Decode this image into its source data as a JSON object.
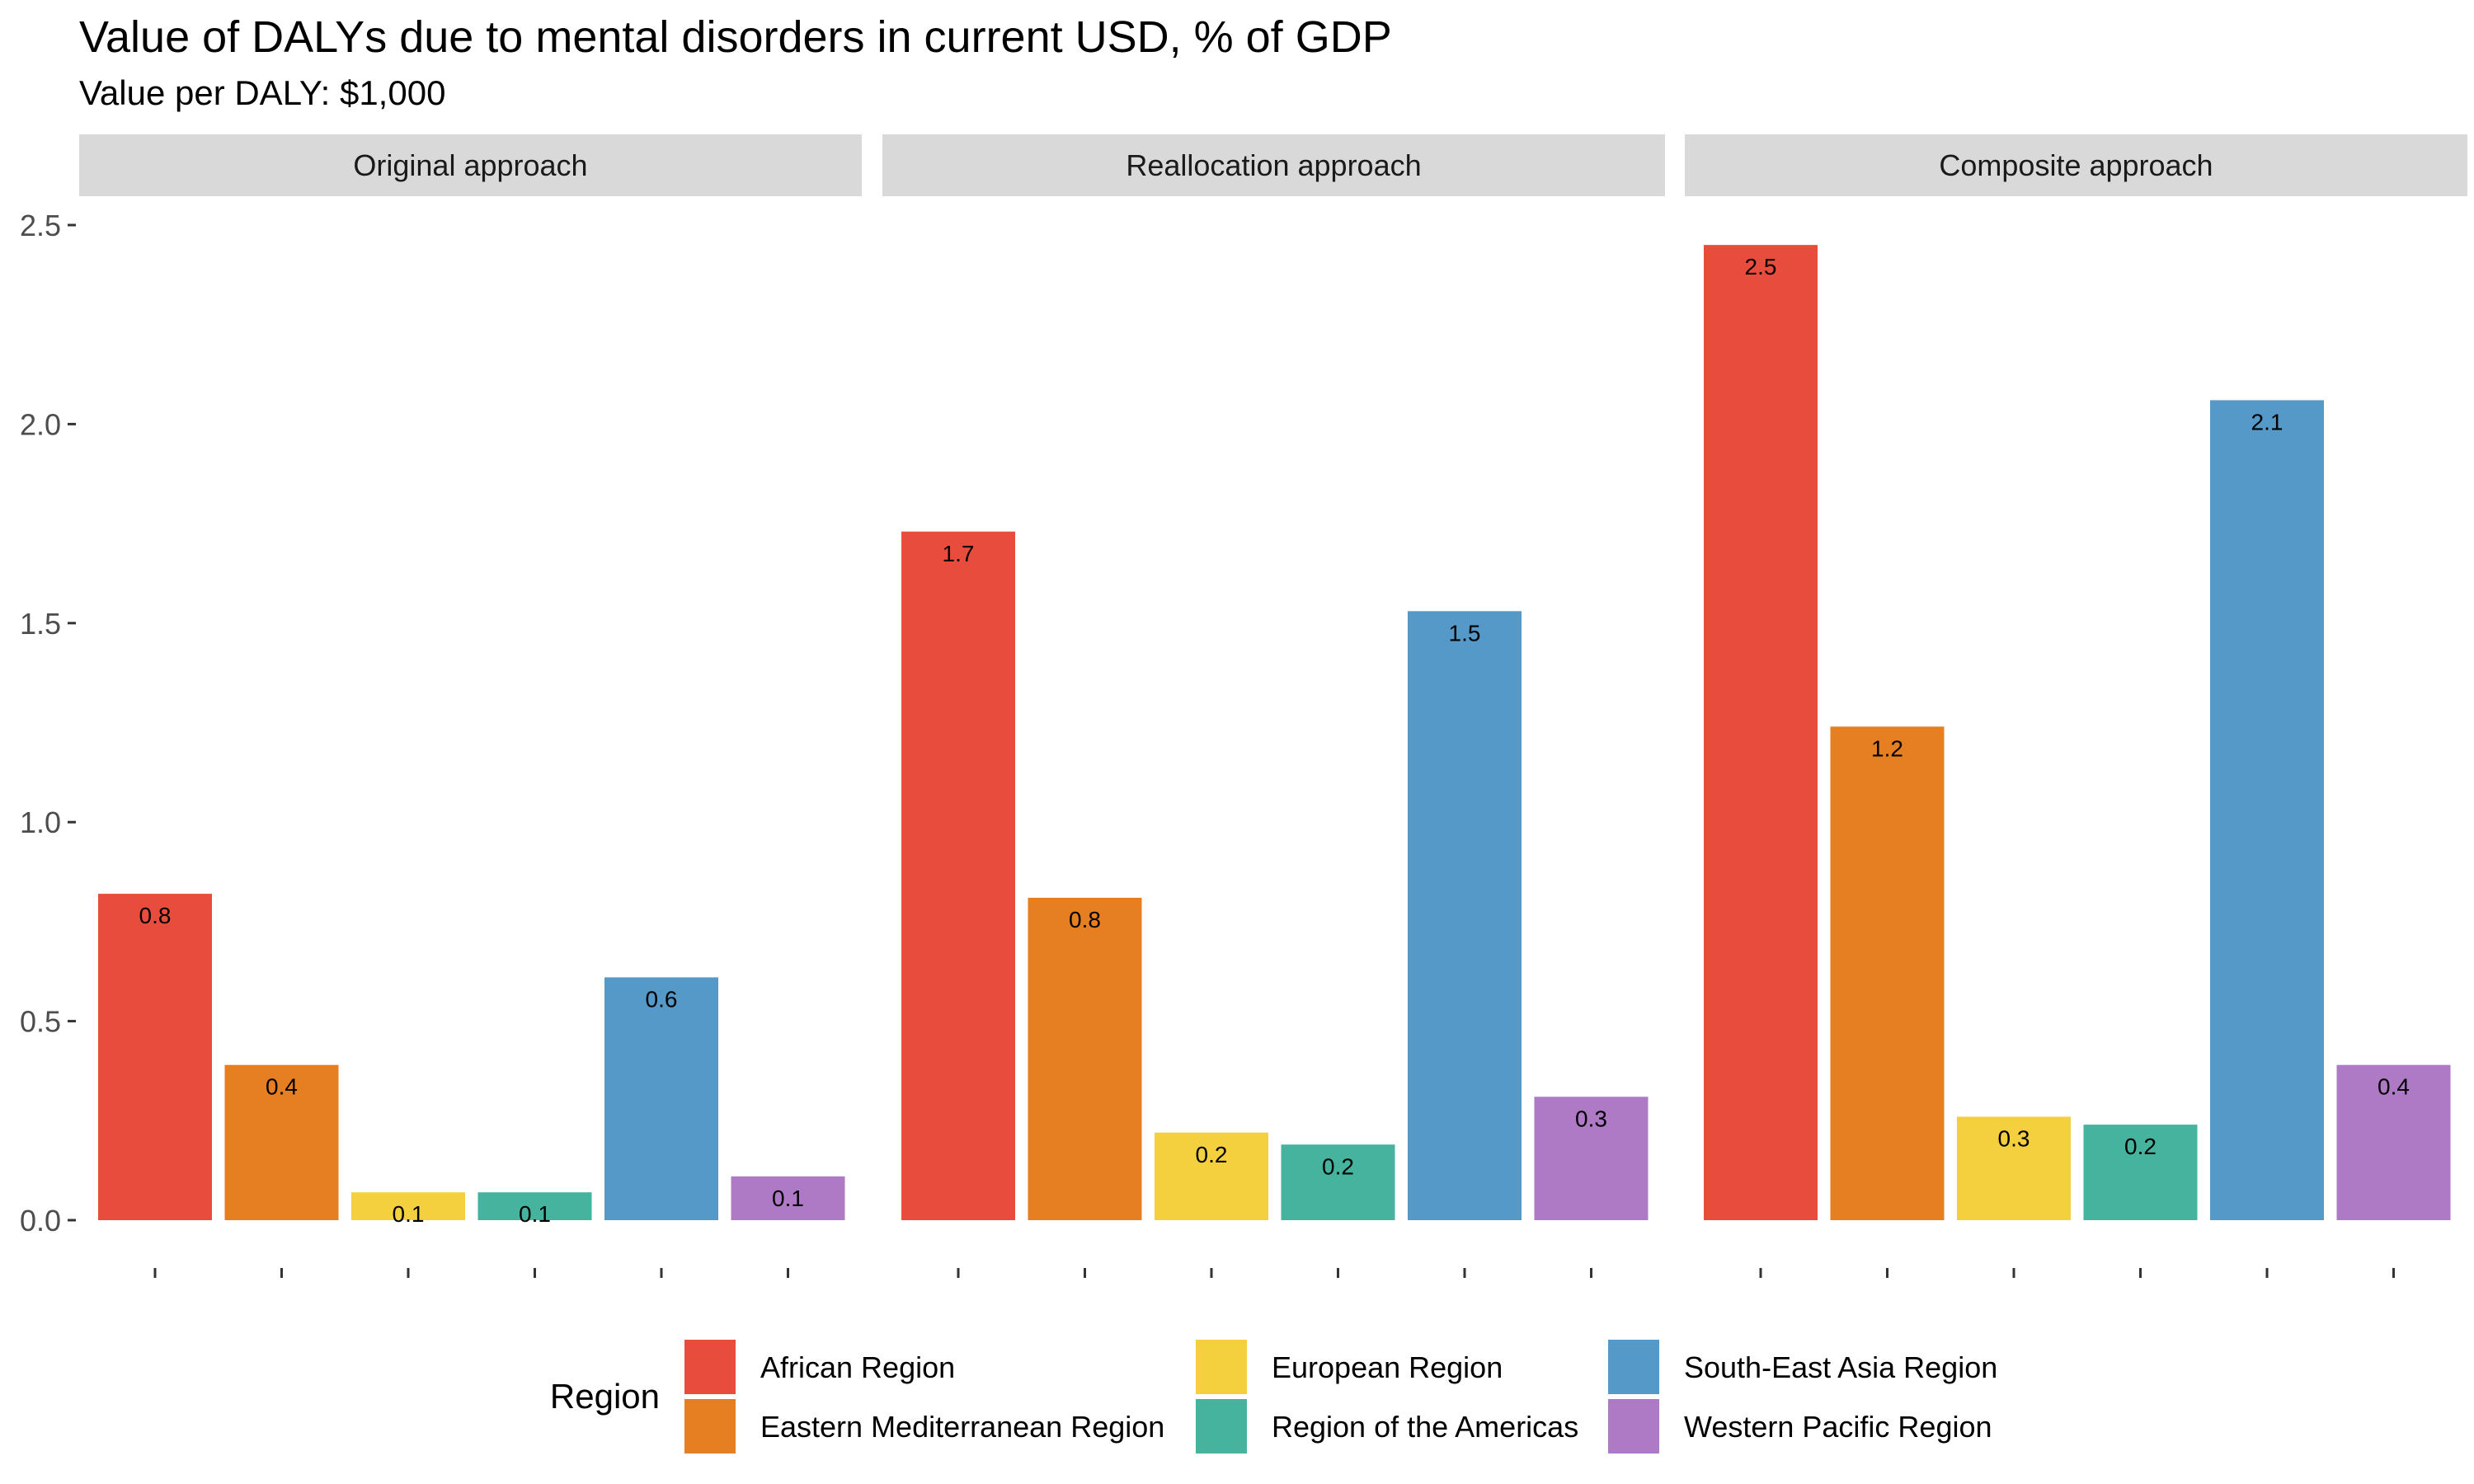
{
  "chart_data": {
    "type": "bar",
    "title": "Value of DALYs due to mental disorders in current USD, % of GDP",
    "subtitle": "Value per DALY: $1,000",
    "ylim": [
      0,
      2.55
    ],
    "yticks": [
      "0.0",
      "0.5",
      "1.0",
      "1.5",
      "2.0",
      "2.5"
    ],
    "ytick_values": [
      0,
      0.5,
      1.0,
      1.5,
      2.0,
      2.5
    ],
    "grid": false,
    "legend_position": "bottom",
    "legend_title": "Region",
    "categories": [
      "African Region",
      "Eastern Mediterranean Region",
      "European Region",
      "Region of the Americas",
      "South-East Asia Region",
      "Western Pacific Region"
    ],
    "colors": [
      "#E84C3D",
      "#E67E22",
      "#F4D03F",
      "#45B39D",
      "#5499C7",
      "#AF7AC5"
    ],
    "panels": [
      {
        "name": "Original approach",
        "values": [
          0.82,
          0.39,
          0.07,
          0.07,
          0.61,
          0.11
        ],
        "labels": [
          "0.8",
          "0.4",
          "0.1",
          "0.1",
          "0.6",
          "0.1"
        ]
      },
      {
        "name": "Reallocation approach",
        "values": [
          1.73,
          0.81,
          0.22,
          0.19,
          1.53,
          0.31
        ],
        "labels": [
          "1.7",
          "0.8",
          "0.2",
          "0.2",
          "1.5",
          "0.3"
        ]
      },
      {
        "name": "Composite approach",
        "values": [
          2.45,
          1.24,
          0.26,
          0.24,
          2.06,
          0.39
        ],
        "labels": [
          "2.5",
          "1.2",
          "0.3",
          "0.2",
          "2.1",
          "0.4"
        ]
      }
    ]
  }
}
